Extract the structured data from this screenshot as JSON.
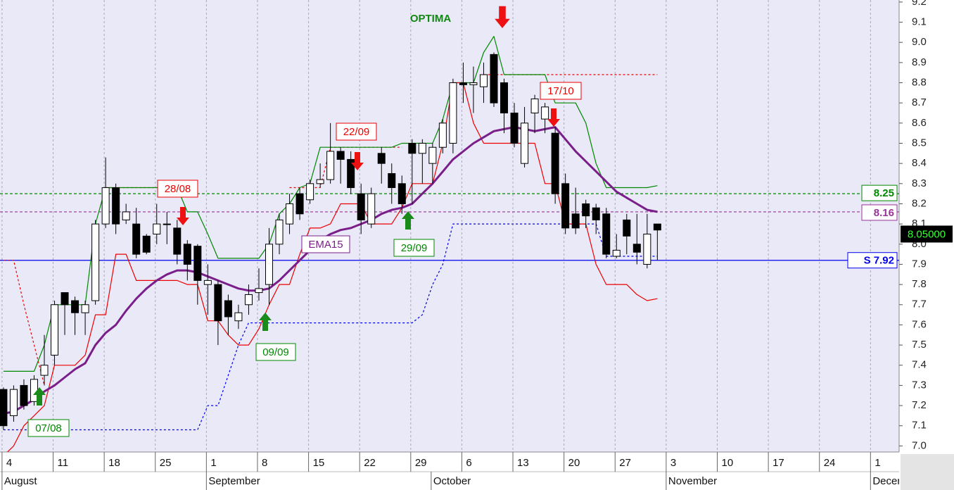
{
  "chart_data": {
    "type": "candlestick",
    "x": [
      "Aug 4",
      "Aug 5",
      "Aug 6",
      "Aug 7",
      "Aug 8",
      "Aug 11",
      "Aug 12",
      "Aug 13",
      "Aug 14",
      "Aug 15",
      "Aug 18",
      "Aug 19",
      "Aug 20",
      "Aug 21",
      "Aug 22",
      "Aug 25",
      "Aug 26",
      "Aug 27",
      "Aug 28",
      "Aug 29",
      "Sep 1",
      "Sep 2",
      "Sep 3",
      "Sep 4",
      "Sep 5",
      "Sep 8",
      "Sep 9",
      "Sep 10",
      "Sep 11",
      "Sep 12",
      "Sep 15",
      "Sep 16",
      "Sep 17",
      "Sep 18",
      "Sep 19",
      "Sep 22",
      "Sep 23",
      "Sep 24",
      "Sep 25",
      "Sep 26",
      "Sep 29",
      "Sep 30",
      "Oct 1",
      "Oct 2",
      "Oct 3",
      "Oct 6",
      "Oct 7",
      "Oct 8",
      "Oct 9",
      "Oct 10",
      "Oct 13",
      "Oct 14",
      "Oct 15",
      "Oct 16",
      "Oct 17",
      "Oct 20",
      "Oct 21",
      "Oct 22",
      "Oct 23",
      "Oct 24",
      "Oct 27",
      "Oct 28",
      "Oct 29",
      "Oct 30",
      "Oct 31"
    ],
    "candles": {
      "open": [
        7.28,
        7.15,
        7.3,
        7.22,
        7.35,
        7.45,
        7.76,
        7.72,
        7.66,
        7.72,
        8.1,
        8.28,
        8.12,
        8.1,
        8.04,
        8.05,
        8.1,
        8.08,
        8.0,
        7.99,
        7.8,
        7.8,
        7.72,
        7.62,
        7.7,
        7.76,
        7.8,
        8.0,
        8.1,
        8.25,
        8.22,
        8.3,
        8.32,
        8.46,
        8.42,
        8.25,
        8.1,
        8.45,
        8.35,
        8.3,
        8.5,
        8.45,
        8.4,
        8.48,
        8.5,
        8.8,
        8.79,
        8.78,
        8.94,
        8.8,
        8.65,
        8.4,
        8.65,
        8.62,
        8.55,
        8.3,
        8.15,
        8.2,
        8.18,
        8.15,
        7.94,
        8.12,
        8.0,
        7.9,
        8.1
      ],
      "high": [
        7.29,
        7.3,
        7.33,
        7.35,
        7.55,
        7.72,
        7.76,
        7.74,
        7.72,
        8.12,
        8.43,
        8.3,
        8.2,
        8.18,
        8.05,
        8.2,
        8.16,
        8.12,
        8.02,
        8.0,
        7.9,
        7.82,
        7.75,
        7.7,
        7.8,
        7.88,
        8.08,
        8.15,
        8.25,
        8.28,
        8.32,
        8.4,
        8.6,
        8.48,
        8.46,
        8.3,
        8.28,
        8.48,
        8.4,
        8.34,
        8.52,
        8.52,
        8.5,
        8.62,
        8.82,
        8.9,
        8.88,
        8.9,
        8.95,
        8.82,
        8.7,
        8.68,
        8.74,
        8.7,
        8.58,
        8.35,
        8.28,
        8.22,
        8.2,
        8.18,
        8.05,
        8.15,
        8.15,
        8.15,
        8.1
      ],
      "low": [
        7.08,
        7.12,
        7.18,
        7.2,
        7.3,
        7.4,
        7.55,
        7.55,
        7.55,
        7.7,
        8.08,
        8.05,
        8.1,
        7.93,
        7.95,
        8.0,
        8.0,
        7.9,
        7.82,
        7.7,
        7.65,
        7.5,
        7.55,
        7.58,
        7.65,
        7.72,
        7.7,
        7.95,
        8.05,
        8.12,
        8.2,
        8.28,
        8.3,
        8.3,
        8.25,
        8.05,
        8.08,
        8.3,
        8.2,
        8.15,
        8.2,
        8.3,
        8.3,
        8.45,
        8.45,
        8.7,
        8.65,
        8.7,
        8.68,
        8.55,
        8.48,
        8.38,
        8.55,
        8.55,
        8.2,
        8.05,
        8.05,
        8.08,
        8.05,
        7.93,
        7.93,
        7.95,
        7.9,
        7.88,
        7.92
      ],
      "close": [
        7.1,
        7.28,
        7.2,
        7.33,
        7.4,
        7.7,
        7.7,
        7.66,
        7.7,
        8.1,
        8.28,
        8.1,
        8.16,
        7.95,
        7.96,
        8.1,
        8.1,
        7.95,
        7.9,
        7.82,
        7.82,
        7.62,
        7.64,
        7.66,
        7.75,
        7.78,
        8.0,
        8.12,
        8.2,
        8.15,
        8.3,
        8.32,
        8.46,
        8.42,
        8.28,
        8.12,
        8.25,
        8.4,
        8.28,
        8.2,
        8.45,
        8.5,
        8.48,
        8.6,
        8.8,
        8.79,
        8.8,
        8.84,
        8.7,
        8.65,
        8.5,
        8.6,
        8.72,
        8.68,
        8.25,
        8.08,
        8.08,
        8.14,
        8.12,
        7.95,
        7.97,
        8.04,
        7.96,
        8.05,
        8.07
      ]
    },
    "lines": [
      {
        "color": "#0000ee",
        "dash": true,
        "width": 1.2,
        "values": [
          7.08,
          7.08,
          7.08,
          7.08,
          7.08,
          7.08,
          7.08,
          7.08,
          7.08,
          7.08,
          7.08,
          7.08,
          7.08,
          7.08,
          7.08,
          7.08,
          7.08,
          7.08,
          7.08,
          7.08,
          7.2,
          7.2,
          7.35,
          7.5,
          7.61,
          7.61,
          7.61,
          7.61,
          7.61,
          7.61,
          7.61,
          7.61,
          7.61,
          7.61,
          7.61,
          7.61,
          7.61,
          7.61,
          7.61,
          7.61,
          7.61,
          7.65,
          7.8,
          7.9,
          8.1,
          8.1,
          8.1,
          8.1,
          8.1,
          8.1,
          8.1,
          8.1,
          8.1,
          8.1,
          8.1,
          8.1,
          8.1,
          8.1,
          8.1,
          7.94,
          7.94,
          7.94,
          7.94,
          7.94,
          7.94
        ]
      },
      {
        "color": "#ee0000",
        "dash": true,
        "width": 1.2,
        "values": [
          7.92,
          7.92,
          7.7,
          7.5,
          7.3,
          null,
          null,
          null,
          null,
          null,
          8.28,
          8.28,
          8.28,
          8.28,
          8.28,
          8.28,
          8.28,
          8.28,
          8.28,
          null,
          null,
          null,
          null,
          null,
          null,
          null,
          null,
          null,
          8.28,
          8.28,
          8.28,
          8.28,
          8.48,
          8.48,
          8.48,
          8.48,
          8.48,
          8.48,
          8.48,
          8.48,
          null,
          null,
          null,
          null,
          null,
          null,
          null,
          8.84,
          8.84,
          8.84,
          8.84,
          8.84,
          8.84,
          8.84,
          8.84,
          8.84,
          8.84,
          8.84,
          8.84,
          8.84,
          8.84,
          8.84,
          8.84,
          8.84,
          8.84
        ]
      },
      {
        "color": "#008800",
        "dash": false,
        "width": 1.2,
        "values": [
          7.37,
          7.37,
          7.37,
          7.37,
          7.5,
          7.7,
          7.7,
          7.7,
          7.7,
          8.1,
          8.28,
          8.28,
          8.28,
          8.28,
          8.28,
          8.28,
          8.28,
          8.28,
          8.16,
          8.16,
          8.05,
          7.93,
          7.93,
          7.93,
          7.93,
          7.93,
          8.0,
          8.15,
          8.2,
          8.28,
          8.3,
          8.48,
          8.48,
          8.48,
          8.48,
          8.48,
          8.48,
          8.48,
          8.48,
          8.5,
          8.5,
          8.5,
          8.5,
          8.62,
          8.8,
          8.8,
          8.8,
          8.95,
          9.03,
          8.84,
          8.84,
          8.84,
          8.84,
          8.84,
          8.7,
          8.7,
          8.7,
          8.6,
          8.4,
          8.28,
          8.28,
          8.28,
          8.28,
          8.28,
          8.29
        ]
      },
      {
        "color": "#ee0000",
        "dash": false,
        "width": 1.2,
        "values": [
          6.95,
          7.0,
          7.1,
          7.15,
          7.2,
          7.4,
          7.4,
          7.4,
          7.45,
          7.65,
          7.65,
          7.95,
          7.95,
          7.82,
          7.82,
          7.82,
          7.82,
          7.82,
          7.8,
          7.8,
          7.62,
          7.62,
          7.55,
          7.5,
          7.5,
          7.58,
          7.7,
          7.8,
          7.8,
          7.95,
          8.08,
          8.08,
          8.1,
          8.2,
          8.2,
          8.2,
          8.1,
          8.1,
          8.1,
          8.18,
          8.3,
          8.3,
          8.3,
          8.5,
          8.8,
          8.8,
          8.6,
          8.5,
          8.5,
          8.5,
          8.5,
          8.5,
          8.5,
          8.3,
          8.3,
          8.1,
          8.1,
          8.1,
          7.9,
          7.8,
          7.8,
          7.8,
          7.75,
          7.72,
          7.73
        ]
      },
      {
        "color": "#7a1f8a",
        "dash": false,
        "width": 3,
        "values": [
          7.16,
          7.17,
          7.2,
          7.23,
          7.27,
          7.3,
          7.34,
          7.38,
          7.41,
          7.5,
          7.56,
          7.6,
          7.67,
          7.73,
          7.78,
          7.82,
          7.85,
          7.87,
          7.87,
          7.86,
          7.84,
          7.82,
          7.8,
          7.78,
          7.77,
          7.77,
          7.78,
          7.82,
          7.87,
          7.92,
          7.97,
          8.02,
          8.05,
          8.07,
          8.08,
          8.1,
          8.12,
          8.15,
          8.17,
          8.18,
          8.2,
          8.25,
          8.3,
          8.36,
          8.42,
          8.46,
          8.5,
          8.53,
          8.56,
          8.57,
          8.58,
          8.57,
          8.56,
          8.57,
          8.58,
          8.52,
          8.46,
          8.41,
          8.36,
          8.31,
          8.26,
          8.23,
          8.2,
          8.17,
          8.16
        ]
      }
    ],
    "levels": [
      {
        "value": 8.25,
        "color": "#008800"
      },
      {
        "value": 8.16,
        "color": "#993399"
      },
      {
        "value": 7.92,
        "label": "S 7.92",
        "color": "#0000ee"
      }
    ],
    "last_price": {
      "value": 8.05,
      "label": "8.05000"
    },
    "annotations": [
      {
        "text": "07/08",
        "color": "#008800"
      },
      {
        "text": "28/08",
        "color": "#ee0000"
      },
      {
        "text": "09/09",
        "color": "#008800"
      },
      {
        "text": "22/09",
        "color": "#ee0000"
      },
      {
        "text": "29/09",
        "color": "#008800"
      },
      {
        "text": "17/10",
        "color": "#ee0000"
      },
      {
        "text": "EMA15",
        "color": "#7a1f8a"
      },
      {
        "text": "OPTIMA",
        "color": "#118811"
      }
    ],
    "ylim": [
      6.97,
      9.21
    ],
    "yticks": [
      {
        "value": 7.0,
        "label": "7.0"
      },
      7.1,
      7.2,
      7.3,
      7.4,
      7.5,
      7.6,
      7.7,
      7.8,
      7.9,
      {
        "value": 8.0,
        "label": "8.0"
      },
      8.1,
      8.2,
      8.3,
      8.4,
      8.5,
      8.6,
      8.7,
      8.8,
      8.9,
      {
        "value": 9.0,
        "label": "9.0"
      },
      9.1,
      9.2
    ],
    "xlim": [
      -0.2,
      87.8
    ],
    "xticks": [
      {
        "value": 0,
        "label": "4"
      },
      {
        "value": 5,
        "label": "11"
      },
      {
        "value": 10,
        "label": "18"
      },
      {
        "value": 15,
        "label": "25"
      },
      {
        "value": 20,
        "label": "1"
      },
      {
        "value": 25,
        "label": "8"
      },
      {
        "value": 30,
        "label": "15"
      },
      {
        "value": 35,
        "label": "22"
      },
      {
        "value": 40,
        "label": "29"
      },
      {
        "value": 45,
        "label": "6"
      },
      {
        "value": 50,
        "label": "13"
      },
      {
        "value": 55,
        "label": "20"
      },
      {
        "value": 60,
        "label": "27"
      },
      {
        "value": 65,
        "label": "3"
      },
      {
        "value": 70,
        "label": "10"
      },
      {
        "value": 75,
        "label": "17"
      },
      {
        "value": 80,
        "label": "24"
      },
      {
        "value": 85,
        "label": "1"
      }
    ],
    "month_ticks": [
      {
        "value": 0,
        "label": "August"
      },
      {
        "value": 20,
        "label": "September"
      },
      {
        "value": 42,
        "label": "October"
      },
      {
        "value": 65,
        "label": "November"
      },
      {
        "value": 85,
        "label": "Decer"
      }
    ],
    "grid": true
  }
}
